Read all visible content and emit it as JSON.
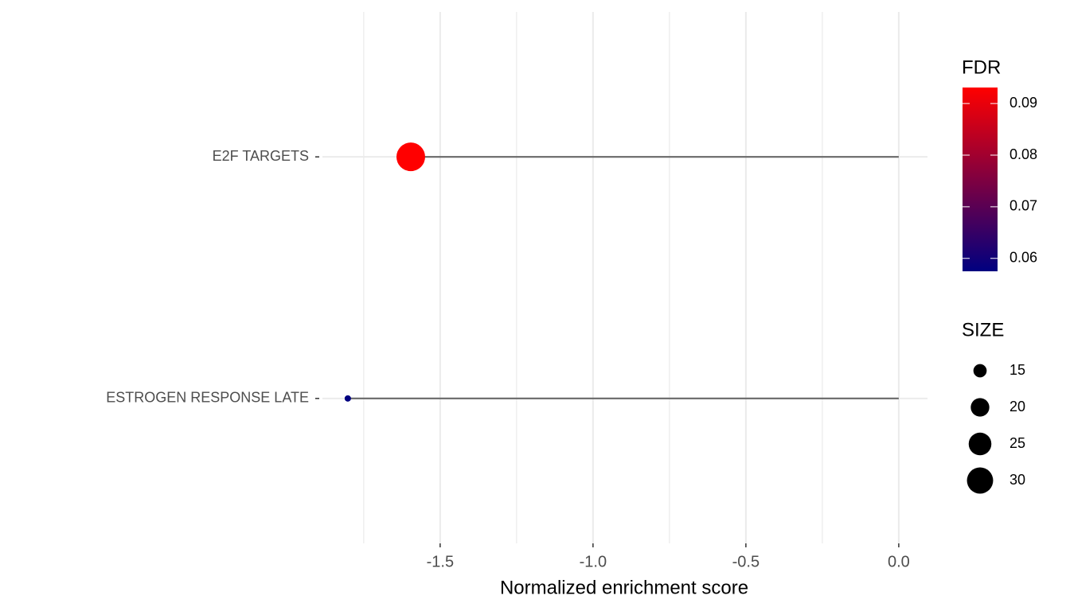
{
  "chart_data": {
    "type": "lollipop",
    "x_label": "Normalized enrichment score",
    "categories": [
      "ESTROGEN RESPONSE LATE",
      "E2F TARGETS"
    ],
    "values": [
      -1.802,
      -1.596
    ],
    "fdr": [
      0.0575,
      0.0931
    ],
    "sizes": [
      11,
      34
    ],
    "segment_color": "#696969",
    "xlim": [
      -1.885,
      0.094
    ],
    "xticks": [
      {
        "value": -1.5,
        "label": "-1.5"
      },
      {
        "value": -1.0,
        "label": "-1.0"
      },
      {
        "value": -0.5,
        "label": "-0.5"
      },
      {
        "value": 0,
        "label": "0.0"
      }
    ],
    "xminor_ticks": [
      -1.75,
      -1.25,
      -0.75,
      -0.25
    ],
    "grid": true,
    "color_legend": {
      "title": "FDR",
      "low_color": "#000080",
      "high_color": "#FF0000",
      "ticks": [
        0.06,
        0.07,
        0.08,
        0.09
      ]
    },
    "size_legend": {
      "title": "SIZE",
      "ticks": [
        15,
        20,
        25,
        30
      ]
    }
  }
}
